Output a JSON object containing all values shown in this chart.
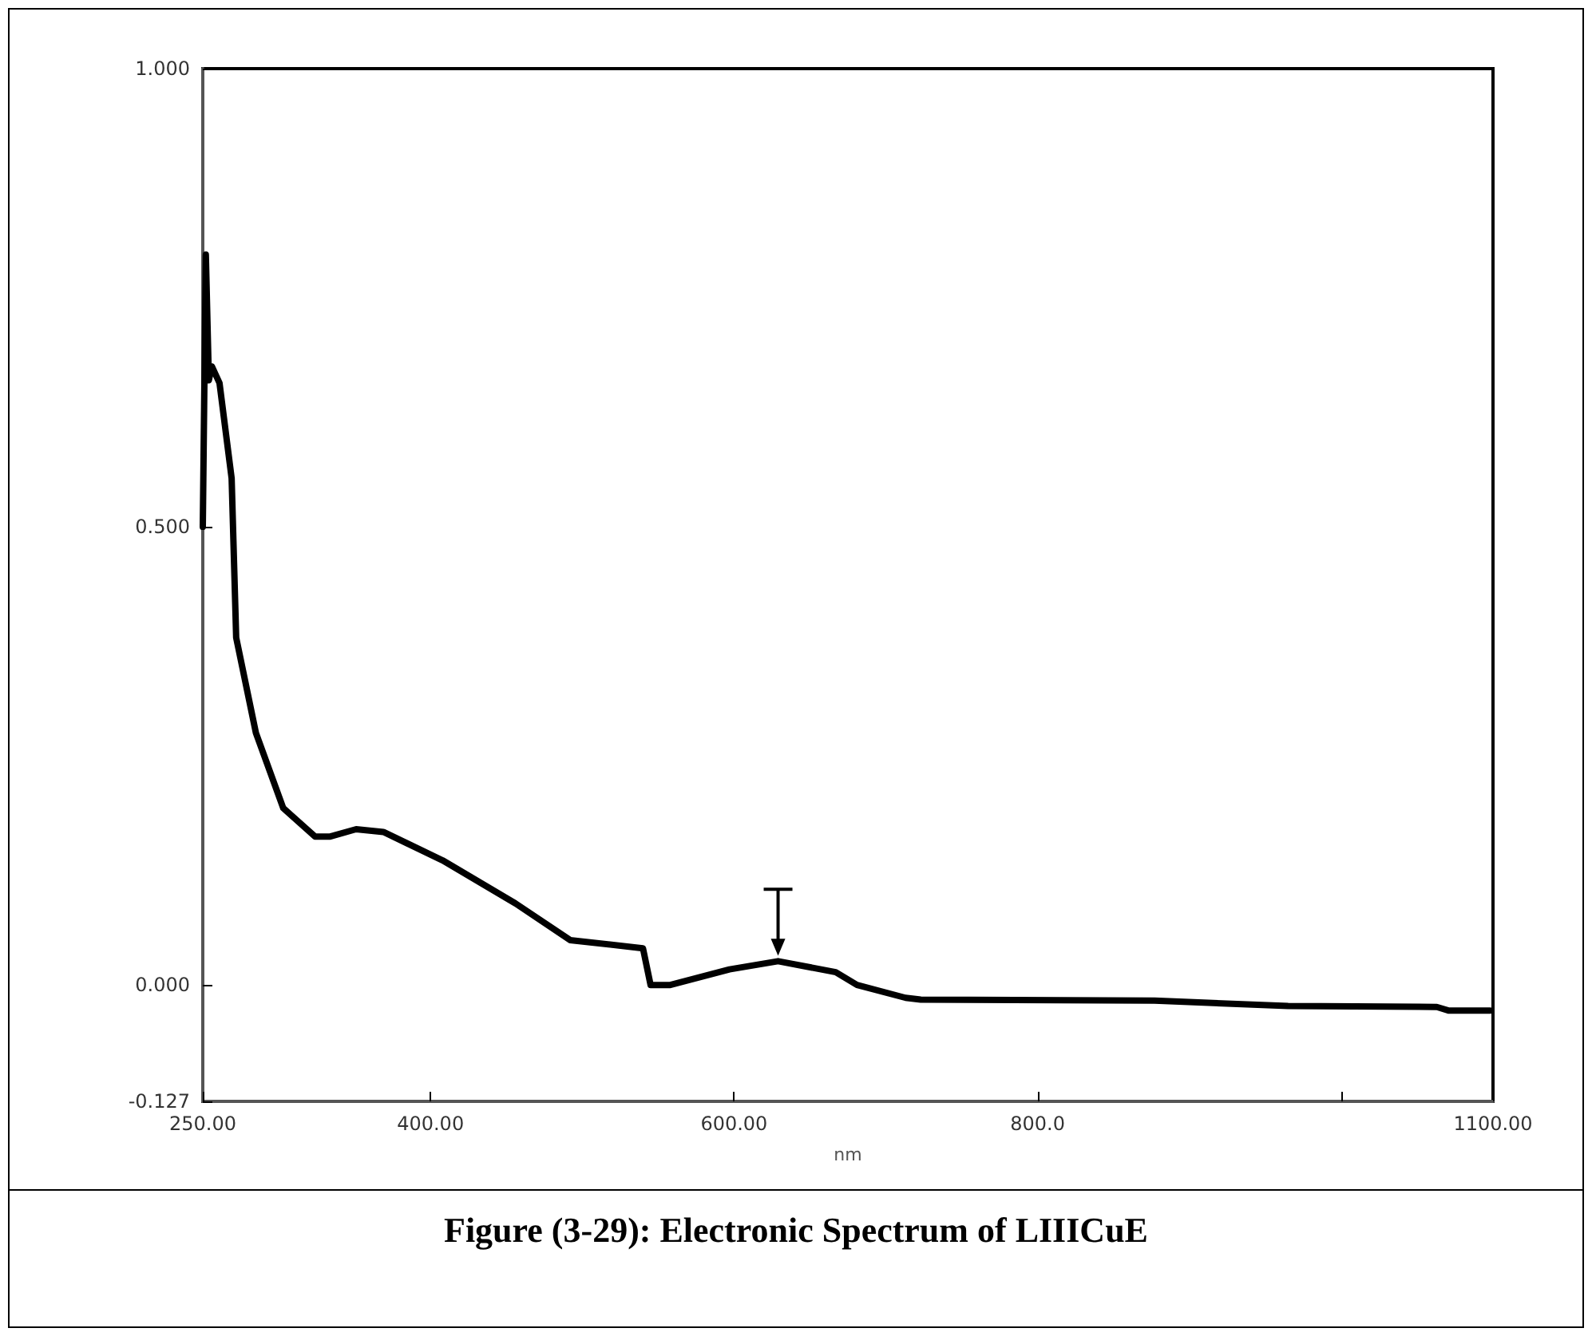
{
  "chart_data": {
    "type": "line",
    "title": "Figure (3-29): Electronic Spectrum of LIIICuE",
    "xlabel": "nm",
    "x": [
      250,
      252,
      254,
      256,
      261,
      269,
      272,
      285,
      303,
      324,
      334,
      351,
      369,
      408,
      456,
      492,
      540,
      545,
      558,
      597,
      629,
      667,
      681,
      713,
      723,
      877,
      965,
      1063,
      1071,
      1098
    ],
    "series": [
      {
        "color": "#000000",
        "values": [
          0.5,
          0.797,
          0.66,
          0.675,
          0.657,
          0.553,
          0.379,
          0.275,
          0.193,
          0.162,
          0.162,
          0.17,
          0.167,
          0.136,
          0.089,
          0.049,
          0.04,
          0.0,
          0.0,
          0.017,
          0.026,
          0.014,
          0.0,
          -0.014,
          -0.016,
          -0.017,
          -0.023,
          -0.024,
          -0.028,
          -0.028
        ]
      }
    ],
    "xlim": [
      250,
      1100
    ],
    "xticks": [
      {
        "value": 250,
        "label": "250.00"
      },
      {
        "value": 400,
        "label": "400.00"
      },
      {
        "value": 600,
        "label": "600.00"
      },
      {
        "value": 800,
        "label": "800.0"
      },
      {
        "value": 1000,
        "label": null
      },
      {
        "value": 1100,
        "label": "1100.00"
      }
    ],
    "ylim": [
      -0.127,
      1.0
    ],
    "yticks": [
      {
        "value": -0.127,
        "label": "-0.127"
      },
      {
        "value": 0,
        "label": "0.000"
      },
      {
        "value": 0.5,
        "label": "0.500"
      },
      {
        "value": 1,
        "label": "1.000"
      }
    ],
    "grid": false,
    "marker": "none",
    "line_style": "solid"
  }
}
